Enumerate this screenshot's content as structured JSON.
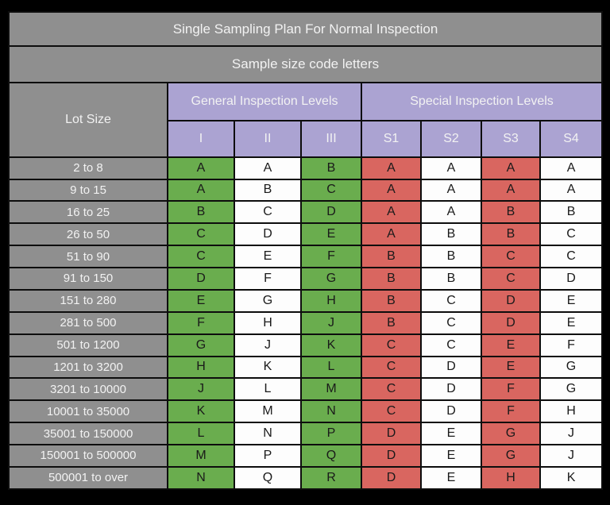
{
  "title": "Single Sampling Plan For Normal Inspection",
  "subtitle": "Sample size code letters",
  "table": {
    "lot_size_header": "Lot Size",
    "general_group_header": "General Inspection Levels",
    "special_group_header": "Special Inspection Levels",
    "level_headers": [
      "I",
      "II",
      "III",
      "S1",
      "S2",
      "S3",
      "S4"
    ],
    "column_fills": [
      "green",
      "white",
      "green",
      "red",
      "white",
      "red",
      "white"
    ],
    "rows": [
      {
        "lot_size": "2 to 8",
        "codes": [
          "A",
          "A",
          "B",
          "A",
          "A",
          "A",
          "A"
        ]
      },
      {
        "lot_size": "9 to 15",
        "codes": [
          "A",
          "B",
          "C",
          "A",
          "A",
          "A",
          "A"
        ]
      },
      {
        "lot_size": "16 to 25",
        "codes": [
          "B",
          "C",
          "D",
          "A",
          "A",
          "B",
          "B"
        ]
      },
      {
        "lot_size": "26 to 50",
        "codes": [
          "C",
          "D",
          "E",
          "A",
          "B",
          "B",
          "C"
        ]
      },
      {
        "lot_size": "51 to 90",
        "codes": [
          "C",
          "E",
          "F",
          "B",
          "B",
          "C",
          "C"
        ]
      },
      {
        "lot_size": "91 to 150",
        "codes": [
          "D",
          "F",
          "G",
          "B",
          "B",
          "C",
          "D"
        ]
      },
      {
        "lot_size": "151 to 280",
        "codes": [
          "E",
          "G",
          "H",
          "B",
          "C",
          "D",
          "E"
        ]
      },
      {
        "lot_size": "281 to 500",
        "codes": [
          "F",
          "H",
          "J",
          "B",
          "C",
          "D",
          "E"
        ]
      },
      {
        "lot_size": "501 to 1200",
        "codes": [
          "G",
          "J",
          "K",
          "C",
          "C",
          "E",
          "F"
        ]
      },
      {
        "lot_size": "1201 to 3200",
        "codes": [
          "H",
          "K",
          "L",
          "C",
          "D",
          "E",
          "G"
        ]
      },
      {
        "lot_size": "3201 to 10000",
        "codes": [
          "J",
          "L",
          "M",
          "C",
          "D",
          "F",
          "G"
        ]
      },
      {
        "lot_size": "10001 to 35000",
        "codes": [
          "K",
          "M",
          "N",
          "C",
          "D",
          "F",
          "H"
        ]
      },
      {
        "lot_size": "35001 to 150000",
        "codes": [
          "L",
          "N",
          "P",
          "D",
          "E",
          "G",
          "J"
        ]
      },
      {
        "lot_size": "150001 to 500000",
        "codes": [
          "M",
          "P",
          "Q",
          "D",
          "E",
          "G",
          "J"
        ]
      },
      {
        "lot_size": "500001 to over",
        "codes": [
          "N",
          "Q",
          "R",
          "D",
          "E",
          "H",
          "K"
        ]
      }
    ]
  },
  "colors": {
    "background": "#000000",
    "header_gray": "#8F8F8F",
    "header_purple": "#ABA3D2",
    "cell_green": "#6AAD4E",
    "cell_red": "#D96660",
    "cell_white": "#FDFDFD",
    "border": "#0D0D0D"
  },
  "chart_data": {
    "type": "table",
    "title": "Single Sampling Plan For Normal Inspection",
    "subtitle": "Sample size code letters",
    "row_label": "Lot Size",
    "column_groups": [
      {
        "name": "General Inspection Levels",
        "columns": [
          "I",
          "II",
          "III"
        ]
      },
      {
        "name": "Special Inspection Levels",
        "columns": [
          "S1",
          "S2",
          "S3",
          "S4"
        ]
      }
    ],
    "categories": [
      "2 to 8",
      "9 to 15",
      "16 to 25",
      "26 to 50",
      "51 to 90",
      "91 to 150",
      "151 to 280",
      "281 to 500",
      "501 to 1200",
      "1201 to 3200",
      "3201 to 10000",
      "10001 to 35000",
      "35001 to 150000",
      "150001 to 500000",
      "500001 to over"
    ],
    "series": [
      {
        "name": "I",
        "values": [
          "A",
          "A",
          "B",
          "C",
          "C",
          "D",
          "E",
          "F",
          "G",
          "H",
          "J",
          "K",
          "L",
          "M",
          "N"
        ]
      },
      {
        "name": "II",
        "values": [
          "A",
          "B",
          "C",
          "D",
          "E",
          "F",
          "G",
          "H",
          "J",
          "K",
          "L",
          "M",
          "N",
          "P",
          "Q"
        ]
      },
      {
        "name": "III",
        "values": [
          "B",
          "C",
          "D",
          "E",
          "F",
          "G",
          "H",
          "J",
          "K",
          "L",
          "M",
          "N",
          "P",
          "Q",
          "R"
        ]
      },
      {
        "name": "S1",
        "values": [
          "A",
          "A",
          "A",
          "A",
          "B",
          "B",
          "B",
          "B",
          "C",
          "C",
          "C",
          "C",
          "D",
          "D",
          "D"
        ]
      },
      {
        "name": "S2",
        "values": [
          "A",
          "A",
          "A",
          "B",
          "B",
          "B",
          "C",
          "C",
          "C",
          "D",
          "D",
          "D",
          "E",
          "E",
          "E"
        ]
      },
      {
        "name": "S3",
        "values": [
          "A",
          "A",
          "B",
          "B",
          "C",
          "C",
          "D",
          "D",
          "E",
          "E",
          "F",
          "F",
          "G",
          "G",
          "H"
        ]
      },
      {
        "name": "S4",
        "values": [
          "A",
          "A",
          "B",
          "C",
          "C",
          "D",
          "E",
          "E",
          "F",
          "G",
          "G",
          "H",
          "J",
          "J",
          "K"
        ]
      }
    ]
  }
}
